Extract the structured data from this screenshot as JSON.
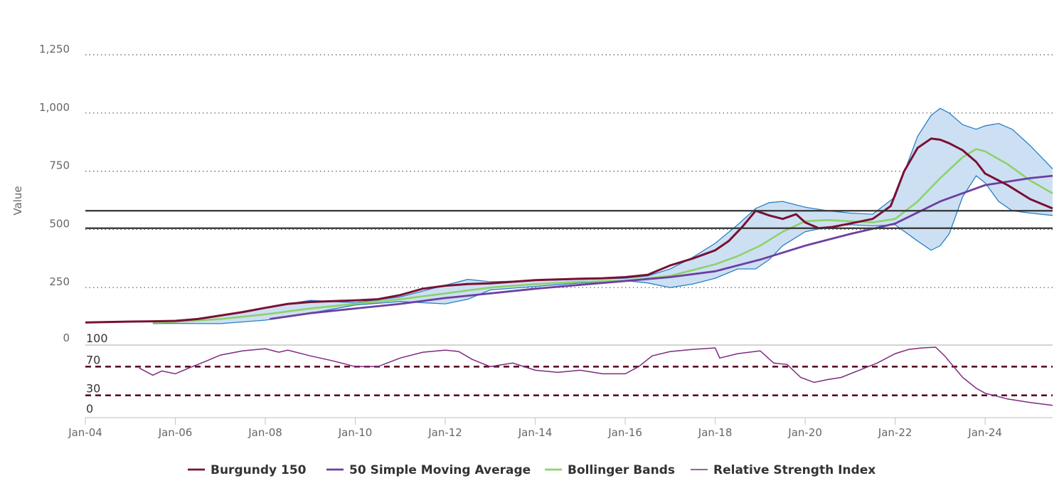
{
  "chart_data": {
    "type": "line",
    "ylabel": "Value",
    "yticks": [
      "1,250",
      "1,000",
      "750",
      "500",
      "250",
      "0"
    ],
    "ytick_values": [
      1250,
      1000,
      750,
      500,
      250,
      0
    ],
    "ylim": [
      0,
      1250
    ],
    "xlim": [
      "2004-01",
      "2025-08"
    ],
    "xticks": [
      "Jan-04",
      "Jan-06",
      "Jan-08",
      "Jan-10",
      "Jan-12",
      "Jan-14",
      "Jan-16",
      "Jan-18",
      "Jan-20",
      "Jan-22",
      "Jan-24"
    ],
    "xtick_years": [
      2004,
      2006,
      2008,
      2010,
      2012,
      2014,
      2016,
      2018,
      2020,
      2022,
      2024
    ],
    "grid": "dotted horizontal",
    "legend_position": "bottom",
    "horizontal_lines": [
      580,
      505
    ],
    "series": [
      {
        "name": "Burgundy 150",
        "color": "#7a1034",
        "x": [
          2004.0,
          2004.5,
          2005.0,
          2005.5,
          2006.0,
          2006.5,
          2007.0,
          2007.5,
          2008.0,
          2008.5,
          2009.0,
          2009.5,
          2010.0,
          2010.5,
          2011.0,
          2011.5,
          2012.0,
          2012.5,
          2013.0,
          2013.5,
          2014.0,
          2014.5,
          2015.0,
          2015.5,
          2016.0,
          2016.5,
          2017.0,
          2017.5,
          2018.0,
          2018.3,
          2018.6,
          2018.9,
          2019.2,
          2019.5,
          2019.8,
          2020.0,
          2020.3,
          2020.6,
          2021.0,
          2021.5,
          2021.9,
          2022.2,
          2022.5,
          2022.8,
          2023.0,
          2023.2,
          2023.5,
          2023.8,
          2024.0,
          2024.5,
          2025.0,
          2025.5
        ],
        "values": [
          100,
          102,
          104,
          105,
          107,
          115,
          130,
          145,
          163,
          180,
          188,
          192,
          195,
          200,
          218,
          245,
          258,
          265,
          268,
          275,
          282,
          285,
          288,
          290,
          295,
          305,
          345,
          375,
          410,
          450,
          510,
          580,
          560,
          545,
          565,
          530,
          505,
          510,
          525,
          545,
          600,
          750,
          850,
          890,
          885,
          870,
          840,
          790,
          740,
          690,
          630,
          590
        ]
      },
      {
        "name": "50 Simple Moving Average",
        "color": "#6b3fa0",
        "x": [
          2008.1,
          2009.0,
          2010.0,
          2011.0,
          2012.0,
          2013.0,
          2014.0,
          2015.0,
          2016.0,
          2017.0,
          2018.0,
          2019.0,
          2020.0,
          2021.0,
          2022.0,
          2023.0,
          2024.0,
          2025.0,
          2025.5
        ],
        "values": [
          115,
          140,
          160,
          180,
          205,
          225,
          245,
          262,
          278,
          295,
          320,
          370,
          430,
          480,
          525,
          620,
          690,
          720,
          730
        ]
      },
      {
        "name": "Bollinger Bands",
        "color": "#8ed16b",
        "x": [
          2005.5,
          2006.0,
          2007.0,
          2008.0,
          2009.0,
          2010.0,
          2011.0,
          2012.0,
          2013.0,
          2014.0,
          2015.0,
          2016.0,
          2017.0,
          2018.0,
          2018.5,
          2019.0,
          2019.5,
          2020.0,
          2020.5,
          2021.0,
          2021.5,
          2022.0,
          2022.5,
          2023.0,
          2023.5,
          2023.8,
          2024.0,
          2024.5,
          2025.0,
          2025.5
        ],
        "values": [
          100,
          103,
          115,
          135,
          160,
          180,
          200,
          225,
          250,
          265,
          275,
          280,
          300,
          350,
          385,
          430,
          490,
          535,
          540,
          535,
          530,
          545,
          620,
          720,
          810,
          845,
          835,
          780,
          710,
          655
        ]
      },
      {
        "name": "Relative Strength Index",
        "color": "#7e2a7e",
        "x": [
          2005.2,
          2005.5,
          2005.7,
          2006.0,
          2006.3,
          2006.7,
          2007.0,
          2007.5,
          2008.0,
          2008.3,
          2008.5,
          2009.0,
          2009.5,
          2010.0,
          2010.5,
          2011.0,
          2011.5,
          2012.0,
          2012.3,
          2012.6,
          2013.0,
          2013.5,
          2014.0,
          2014.5,
          2015.0,
          2015.5,
          2016.0,
          2016.3,
          2016.6,
          2017.0,
          2017.5,
          2018.0,
          2018.1,
          2018.5,
          2019.0,
          2019.3,
          2019.6,
          2019.9,
          2020.2,
          2020.5,
          2020.8,
          2021.2,
          2021.6,
          2022.0,
          2022.3,
          2022.6,
          2022.9,
          2023.1,
          2023.5,
          2023.8,
          2024.0,
          2024.5,
          2025.0,
          2025.5
        ],
        "values": [
          68,
          58,
          64,
          60,
          68,
          78,
          86,
          92,
          95,
          90,
          93,
          85,
          78,
          70,
          70,
          82,
          90,
          93,
          91,
          80,
          70,
          75,
          65,
          62,
          65,
          60,
          60,
          70,
          85,
          91,
          94,
          96,
          82,
          88,
          92,
          75,
          73,
          55,
          48,
          52,
          55,
          65,
          75,
          88,
          94,
          96,
          97,
          85,
          55,
          40,
          33,
          25,
          20,
          16
        ]
      }
    ],
    "bollinger_band": {
      "x": [
        2005.5,
        2006.0,
        2007.0,
        2008.0,
        2009.0,
        2010.0,
        2011.0,
        2012.0,
        2012.5,
        2013.0,
        2014.0,
        2015.0,
        2016.0,
        2016.5,
        2017.0,
        2017.5,
        2018.0,
        2018.5,
        2018.9,
        2019.2,
        2019.5,
        2020.0,
        2020.5,
        2021.0,
        2021.5,
        2022.0,
        2022.5,
        2022.8,
        2023.0,
        2023.2,
        2023.5,
        2023.8,
        2024.0,
        2024.3,
        2024.6,
        2025.0,
        2025.5
      ],
      "upper": [
        100,
        105,
        130,
        165,
        195,
        185,
        210,
        260,
        285,
        275,
        280,
        285,
        290,
        300,
        330,
        380,
        440,
        520,
        590,
        615,
        620,
        595,
        580,
        570,
        565,
        640,
        900,
        990,
        1020,
        1000,
        950,
        930,
        945,
        955,
        930,
        860,
        760
      ],
      "lower": [
        95,
        96,
        95,
        110,
        140,
        175,
        190,
        180,
        200,
        240,
        255,
        270,
        280,
        270,
        250,
        265,
        290,
        330,
        330,
        370,
        430,
        490,
        510,
        520,
        515,
        520,
        450,
        410,
        430,
        480,
        640,
        730,
        700,
        620,
        580,
        570,
        560
      ]
    },
    "rsi_panel": {
      "levels": [
        "100",
        "70",
        "30",
        "0"
      ],
      "level_values": [
        100,
        70,
        30,
        0
      ],
      "threshold_lines": [
        70,
        30
      ]
    }
  }
}
